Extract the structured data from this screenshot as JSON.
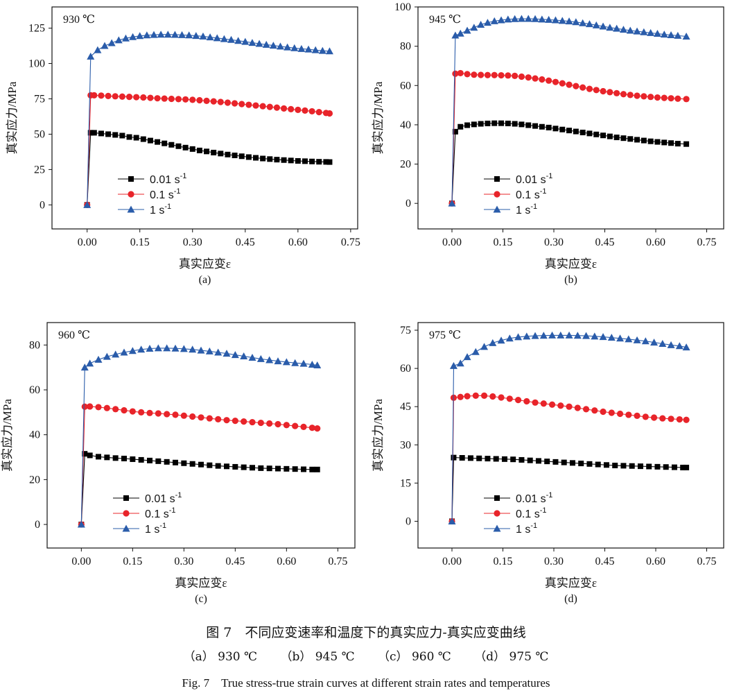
{
  "chart_data": [
    {
      "type": "line",
      "panel": "(a)",
      "annotation": "930 ℃",
      "xlabel": "真实应变ε",
      "ylabel": "真实应力/MPa",
      "xlim": [
        -0.1,
        0.77
      ],
      "ylim": [
        -17,
        140
      ],
      "xticks": [
        "0.00",
        "0.15",
        "0.30",
        "0.45",
        "0.60",
        "0.75"
      ],
      "yticks": [
        "0",
        "25",
        "50",
        "75",
        "100",
        "125"
      ],
      "legend_position": "lower-left",
      "series": [
        {
          "name": "0.01 s-1",
          "color": "#000000",
          "marker": "square",
          "x": [
            0,
            0.01,
            0.02,
            0.04,
            0.06,
            0.08,
            0.1,
            0.12,
            0.14,
            0.16,
            0.18,
            0.2,
            0.22,
            0.24,
            0.26,
            0.28,
            0.3,
            0.32,
            0.34,
            0.36,
            0.38,
            0.4,
            0.42,
            0.44,
            0.46,
            0.48,
            0.5,
            0.52,
            0.54,
            0.56,
            0.58,
            0.6,
            0.62,
            0.64,
            0.66,
            0.68,
            0.69
          ],
          "y": [
            0,
            51,
            51,
            50.5,
            50,
            49.5,
            49,
            48,
            47.5,
            46.5,
            45.5,
            44.5,
            43.5,
            42.5,
            41.5,
            40.5,
            39.5,
            38.5,
            37.8,
            37,
            36.3,
            35.6,
            35,
            34.4,
            33.8,
            33.3,
            32.8,
            32.4,
            32,
            31.7,
            31.4,
            31.1,
            30.9,
            30.7,
            30.5,
            30.4,
            30.3
          ]
        },
        {
          "name": "0.1 s-1",
          "color": "#e8242a",
          "marker": "circle",
          "x": [
            0,
            0.01,
            0.02,
            0.04,
            0.06,
            0.08,
            0.1,
            0.12,
            0.14,
            0.16,
            0.18,
            0.2,
            0.22,
            0.24,
            0.26,
            0.28,
            0.3,
            0.32,
            0.34,
            0.36,
            0.38,
            0.4,
            0.42,
            0.44,
            0.46,
            0.48,
            0.5,
            0.52,
            0.54,
            0.56,
            0.58,
            0.6,
            0.62,
            0.64,
            0.66,
            0.68,
            0.69
          ],
          "y": [
            0,
            77.5,
            77.5,
            77.3,
            77,
            76.8,
            76.6,
            76.4,
            76.2,
            76,
            75.7,
            75.4,
            75.2,
            75,
            74.8,
            74.6,
            74.3,
            74,
            73.6,
            73.2,
            72.8,
            72.3,
            71.8,
            71.3,
            70.8,
            70.3,
            69.8,
            69.3,
            68.8,
            68.2,
            67.7,
            67.2,
            66.7,
            66.2,
            65.6,
            65,
            64.7
          ]
        },
        {
          "name": "1 s-1",
          "color": "#2a5caa",
          "marker": "triangle",
          "x": [
            0,
            0.01,
            0.03,
            0.05,
            0.07,
            0.09,
            0.11,
            0.13,
            0.15,
            0.17,
            0.19,
            0.21,
            0.23,
            0.25,
            0.27,
            0.29,
            0.31,
            0.33,
            0.35,
            0.37,
            0.39,
            0.41,
            0.43,
            0.45,
            0.47,
            0.49,
            0.51,
            0.53,
            0.55,
            0.57,
            0.59,
            0.61,
            0.63,
            0.65,
            0.67,
            0.69
          ],
          "y": [
            0,
            105,
            109.5,
            112.5,
            114.5,
            116.5,
            117.8,
            118.8,
            119.5,
            120,
            120.3,
            120.5,
            120.5,
            120.4,
            120.2,
            120,
            119.6,
            119.2,
            118.6,
            118,
            117.4,
            116.8,
            116.1,
            115.4,
            114.7,
            114,
            113.3,
            112.7,
            112.1,
            111.5,
            110.9,
            110.4,
            110,
            109.5,
            109,
            108.7
          ]
        }
      ]
    },
    {
      "type": "line",
      "panel": "(b)",
      "annotation": "945 ℃",
      "xlabel": "真实应变ε",
      "ylabel": "真实应力/MPa",
      "xlim": [
        -0.1,
        0.8
      ],
      "ylim": [
        -13,
        100
      ],
      "xticks": [
        "0.00",
        "0.15",
        "0.30",
        "0.45",
        "0.60",
        "0.75"
      ],
      "yticks": [
        "0",
        "20",
        "40",
        "60",
        "80",
        "100"
      ],
      "legend_position": "lower-left",
      "series": [
        {
          "name": "0.01 s-1",
          "color": "#000000",
          "marker": "square",
          "x": [
            0,
            0.01,
            0.025,
            0.045,
            0.065,
            0.085,
            0.105,
            0.125,
            0.145,
            0.165,
            0.185,
            0.205,
            0.225,
            0.245,
            0.265,
            0.285,
            0.305,
            0.325,
            0.345,
            0.365,
            0.385,
            0.405,
            0.425,
            0.445,
            0.465,
            0.485,
            0.505,
            0.525,
            0.545,
            0.565,
            0.585,
            0.605,
            0.625,
            0.645,
            0.665,
            0.69
          ],
          "y": [
            0,
            36.5,
            39,
            39.8,
            40.2,
            40.5,
            40.7,
            40.8,
            40.8,
            40.7,
            40.5,
            40.2,
            39.8,
            39.4,
            39,
            38.6,
            38.1,
            37.6,
            37.1,
            36.6,
            36.1,
            35.6,
            35.1,
            34.6,
            34.1,
            33.6,
            33.2,
            32.8,
            32.4,
            32,
            31.6,
            31.3,
            31,
            30.7,
            30.4,
            30.2
          ]
        },
        {
          "name": "0.1 s-1",
          "color": "#e8242a",
          "marker": "circle",
          "x": [
            0,
            0.01,
            0.025,
            0.045,
            0.065,
            0.085,
            0.105,
            0.125,
            0.145,
            0.165,
            0.185,
            0.205,
            0.225,
            0.245,
            0.265,
            0.285,
            0.305,
            0.325,
            0.345,
            0.365,
            0.385,
            0.405,
            0.425,
            0.445,
            0.465,
            0.485,
            0.505,
            0.525,
            0.545,
            0.565,
            0.585,
            0.605,
            0.625,
            0.645,
            0.665,
            0.69
          ],
          "y": [
            0,
            66,
            66.3,
            65.8,
            65.5,
            65.4,
            65.3,
            65.3,
            65.2,
            65.1,
            64.9,
            64.5,
            64.1,
            63.6,
            63.1,
            62.5,
            61.8,
            61.1,
            60.4,
            59.7,
            59,
            58.3,
            57.7,
            57.1,
            56.6,
            56.1,
            55.6,
            55.2,
            54.8,
            54.5,
            54.2,
            53.9,
            53.7,
            53.5,
            53.3,
            53.1
          ]
        },
        {
          "name": "1 s-1",
          "color": "#2a5caa",
          "marker": "triangle",
          "x": [
            0,
            0.01,
            0.025,
            0.045,
            0.065,
            0.085,
            0.105,
            0.125,
            0.145,
            0.165,
            0.185,
            0.205,
            0.225,
            0.245,
            0.265,
            0.285,
            0.305,
            0.325,
            0.345,
            0.365,
            0.385,
            0.405,
            0.425,
            0.445,
            0.465,
            0.485,
            0.505,
            0.525,
            0.545,
            0.565,
            0.585,
            0.605,
            0.625,
            0.645,
            0.665,
            0.69
          ],
          "y": [
            0,
            85.5,
            86.5,
            88,
            89.5,
            91,
            92,
            92.8,
            93.3,
            93.7,
            93.9,
            94,
            94,
            93.9,
            93.7,
            93.5,
            93.3,
            93,
            92.7,
            92.3,
            91.8,
            91.3,
            90.7,
            90.1,
            89.5,
            89,
            88.5,
            88,
            87.6,
            87.2,
            86.8,
            86.4,
            86,
            85.7,
            85.4,
            85
          ]
        }
      ]
    },
    {
      "type": "line",
      "panel": "(c)",
      "annotation": "960 ℃",
      "xlabel": "真实应变ε",
      "ylabel": "真实应力/MPa",
      "xlim": [
        -0.1,
        0.8
      ],
      "ylim": [
        -10.5,
        90
      ],
      "xticks": [
        "0.00",
        "0.15",
        "0.30",
        "0.45",
        "0.60",
        "0.75"
      ],
      "yticks": [
        "0",
        "20",
        "40",
        "60",
        "80"
      ],
      "legend_position": "lower-left",
      "series": [
        {
          "name": "0.01 s-1",
          "color": "#000000",
          "marker": "square",
          "x": [
            0,
            0.01,
            0.025,
            0.05,
            0.075,
            0.1,
            0.125,
            0.15,
            0.175,
            0.2,
            0.225,
            0.25,
            0.275,
            0.3,
            0.325,
            0.35,
            0.375,
            0.4,
            0.425,
            0.45,
            0.475,
            0.5,
            0.525,
            0.55,
            0.575,
            0.6,
            0.625,
            0.65,
            0.675,
            0.69
          ],
          "y": [
            0,
            31.5,
            30.8,
            30.2,
            29.9,
            29.6,
            29.4,
            29.1,
            28.8,
            28.5,
            28.2,
            27.9,
            27.6,
            27.3,
            27,
            26.7,
            26.4,
            26.1,
            25.9,
            25.7,
            25.5,
            25.3,
            25.1,
            25,
            24.9,
            24.8,
            24.7,
            24.6,
            24.5,
            24.5
          ]
        },
        {
          "name": "0.1 s-1",
          "color": "#e8242a",
          "marker": "circle",
          "x": [
            0,
            0.01,
            0.025,
            0.05,
            0.075,
            0.1,
            0.125,
            0.15,
            0.175,
            0.2,
            0.225,
            0.25,
            0.275,
            0.3,
            0.325,
            0.35,
            0.375,
            0.4,
            0.425,
            0.45,
            0.475,
            0.5,
            0.525,
            0.55,
            0.575,
            0.6,
            0.625,
            0.65,
            0.675,
            0.69
          ],
          "y": [
            0,
            52.5,
            52.6,
            52.3,
            51.9,
            51.4,
            50.9,
            50.4,
            50,
            49.7,
            49.5,
            49.2,
            48.9,
            48.5,
            48.1,
            47.7,
            47.3,
            46.9,
            46.5,
            46.2,
            45.9,
            45.6,
            45.3,
            45,
            44.7,
            44.3,
            43.9,
            43.5,
            43.1,
            42.8
          ]
        },
        {
          "name": "1 s-1",
          "color": "#2a5caa",
          "marker": "triangle",
          "x": [
            0,
            0.01,
            0.025,
            0.05,
            0.075,
            0.1,
            0.125,
            0.15,
            0.175,
            0.2,
            0.225,
            0.25,
            0.275,
            0.3,
            0.325,
            0.35,
            0.375,
            0.4,
            0.425,
            0.45,
            0.475,
            0.5,
            0.525,
            0.55,
            0.575,
            0.6,
            0.625,
            0.65,
            0.675,
            0.69
          ],
          "y": [
            0,
            70,
            71.8,
            73.5,
            74.8,
            75.8,
            76.7,
            77.4,
            78,
            78.4,
            78.6,
            78.6,
            78.5,
            78.3,
            78,
            77.6,
            77.2,
            76.7,
            76.2,
            75.6,
            75,
            74.4,
            73.8,
            73.3,
            72.8,
            72.4,
            72,
            71.7,
            71.3,
            71
          ]
        }
      ]
    },
    {
      "type": "line",
      "panel": "(d)",
      "annotation": "975 ℃",
      "xlabel": "真实应变ε",
      "ylabel": "真实应力/MPa",
      "xlim": [
        -0.1,
        0.8
      ],
      "ylim": [
        -10.5,
        78
      ],
      "xticks": [
        "0.00",
        "0.15",
        "0.30",
        "0.45",
        "0.60",
        "0.75"
      ],
      "yticks": [
        "0",
        "15",
        "30",
        "45",
        "60",
        "75"
      ],
      "legend_position": "lower-left",
      "series": [
        {
          "name": "0.01 s-1",
          "color": "#000000",
          "marker": "square",
          "x": [
            0,
            0.005,
            0.03,
            0.055,
            0.08,
            0.105,
            0.13,
            0.155,
            0.18,
            0.205,
            0.23,
            0.255,
            0.28,
            0.305,
            0.33,
            0.355,
            0.38,
            0.405,
            0.43,
            0.455,
            0.48,
            0.505,
            0.53,
            0.555,
            0.58,
            0.605,
            0.63,
            0.655,
            0.68,
            0.69
          ],
          "y": [
            0,
            25,
            24.9,
            24.8,
            24.7,
            24.6,
            24.5,
            24.4,
            24.3,
            24.1,
            23.9,
            23.7,
            23.5,
            23.3,
            23.1,
            22.9,
            22.7,
            22.5,
            22.3,
            22.1,
            21.9,
            21.8,
            21.7,
            21.6,
            21.5,
            21.4,
            21.3,
            21.2,
            21.1,
            21.1
          ]
        },
        {
          "name": "0.1 s-1",
          "color": "#e8242a",
          "marker": "circle",
          "x": [
            0,
            0.005,
            0.025,
            0.045,
            0.07,
            0.095,
            0.12,
            0.145,
            0.17,
            0.195,
            0.22,
            0.245,
            0.27,
            0.295,
            0.32,
            0.345,
            0.37,
            0.395,
            0.42,
            0.445,
            0.47,
            0.495,
            0.52,
            0.545,
            0.57,
            0.595,
            0.62,
            0.645,
            0.67,
            0.69
          ],
          "y": [
            0,
            48.5,
            48.8,
            49.1,
            49.3,
            49.3,
            49.0,
            48.6,
            48.1,
            47.6,
            47.1,
            46.6,
            46.2,
            45.8,
            45.4,
            45,
            44.5,
            44,
            43.5,
            43,
            42.6,
            42.2,
            41.8,
            41.4,
            41,
            40.7,
            40.4,
            40.2,
            40,
            39.8
          ]
        },
        {
          "name": "1 s-1",
          "color": "#2a5caa",
          "marker": "triangle",
          "x": [
            0,
            0.005,
            0.025,
            0.045,
            0.07,
            0.095,
            0.12,
            0.145,
            0.17,
            0.195,
            0.22,
            0.245,
            0.27,
            0.295,
            0.32,
            0.345,
            0.37,
            0.395,
            0.42,
            0.445,
            0.47,
            0.495,
            0.52,
            0.545,
            0.57,
            0.595,
            0.62,
            0.645,
            0.67,
            0.69
          ],
          "y": [
            0,
            61,
            62,
            64.5,
            66.5,
            68.5,
            70,
            71,
            71.8,
            72.3,
            72.6,
            72.8,
            72.9,
            73,
            73,
            73,
            72.9,
            72.8,
            72.6,
            72.4,
            72.1,
            71.8,
            71.5,
            71.1,
            70.7,
            70.2,
            69.7,
            69.2,
            68.8,
            68.3
          ]
        }
      ]
    }
  ],
  "caption": {
    "cn": "图 7　不同应变速率和温度下的真实应力-真实应变曲线",
    "sub": [
      "（a） 930 ℃",
      "（b） 945 ℃",
      "（c） 960 ℃",
      "（d） 975 ℃"
    ],
    "en": "Fig. 7　True stress-true strain curves at different strain rates and temperatures"
  }
}
